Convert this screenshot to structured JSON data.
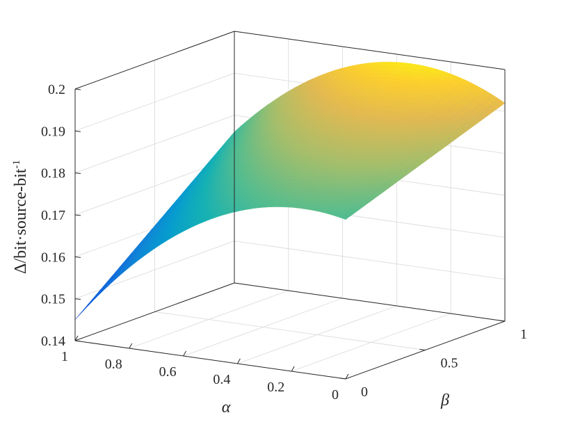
{
  "chart_data": {
    "type": "surface",
    "title": "",
    "xlabel": "α",
    "ylabel": "β",
    "zlabel": "Δ/bit·source-bit",
    "zlabel_superscript": "-1",
    "x_ticks": [
      "1",
      "0.8",
      "0.6",
      "0.4",
      "0.2",
      "0"
    ],
    "y_ticks": [
      "0",
      "0.5",
      "1"
    ],
    "z_ticks": [
      "0.2",
      "0.19",
      "0.18",
      "0.17",
      "0.16",
      "0.15",
      "0.14"
    ],
    "xlim": [
      0,
      1
    ],
    "ylim": [
      0,
      1
    ],
    "zlim": [
      0.14,
      0.2
    ],
    "grid": true,
    "colormap": "parula",
    "corner_values": [
      {
        "alpha": 1,
        "beta": 0,
        "z": 0.145
      },
      {
        "alpha": 0,
        "beta": 0,
        "z": 0.178
      },
      {
        "alpha": 1,
        "beta": 1,
        "z": 0.176
      },
      {
        "alpha": 0,
        "beta": 1,
        "z": 0.192
      }
    ],
    "peak": {
      "alpha": 0.3,
      "beta": 1,
      "z": 0.2
    }
  }
}
